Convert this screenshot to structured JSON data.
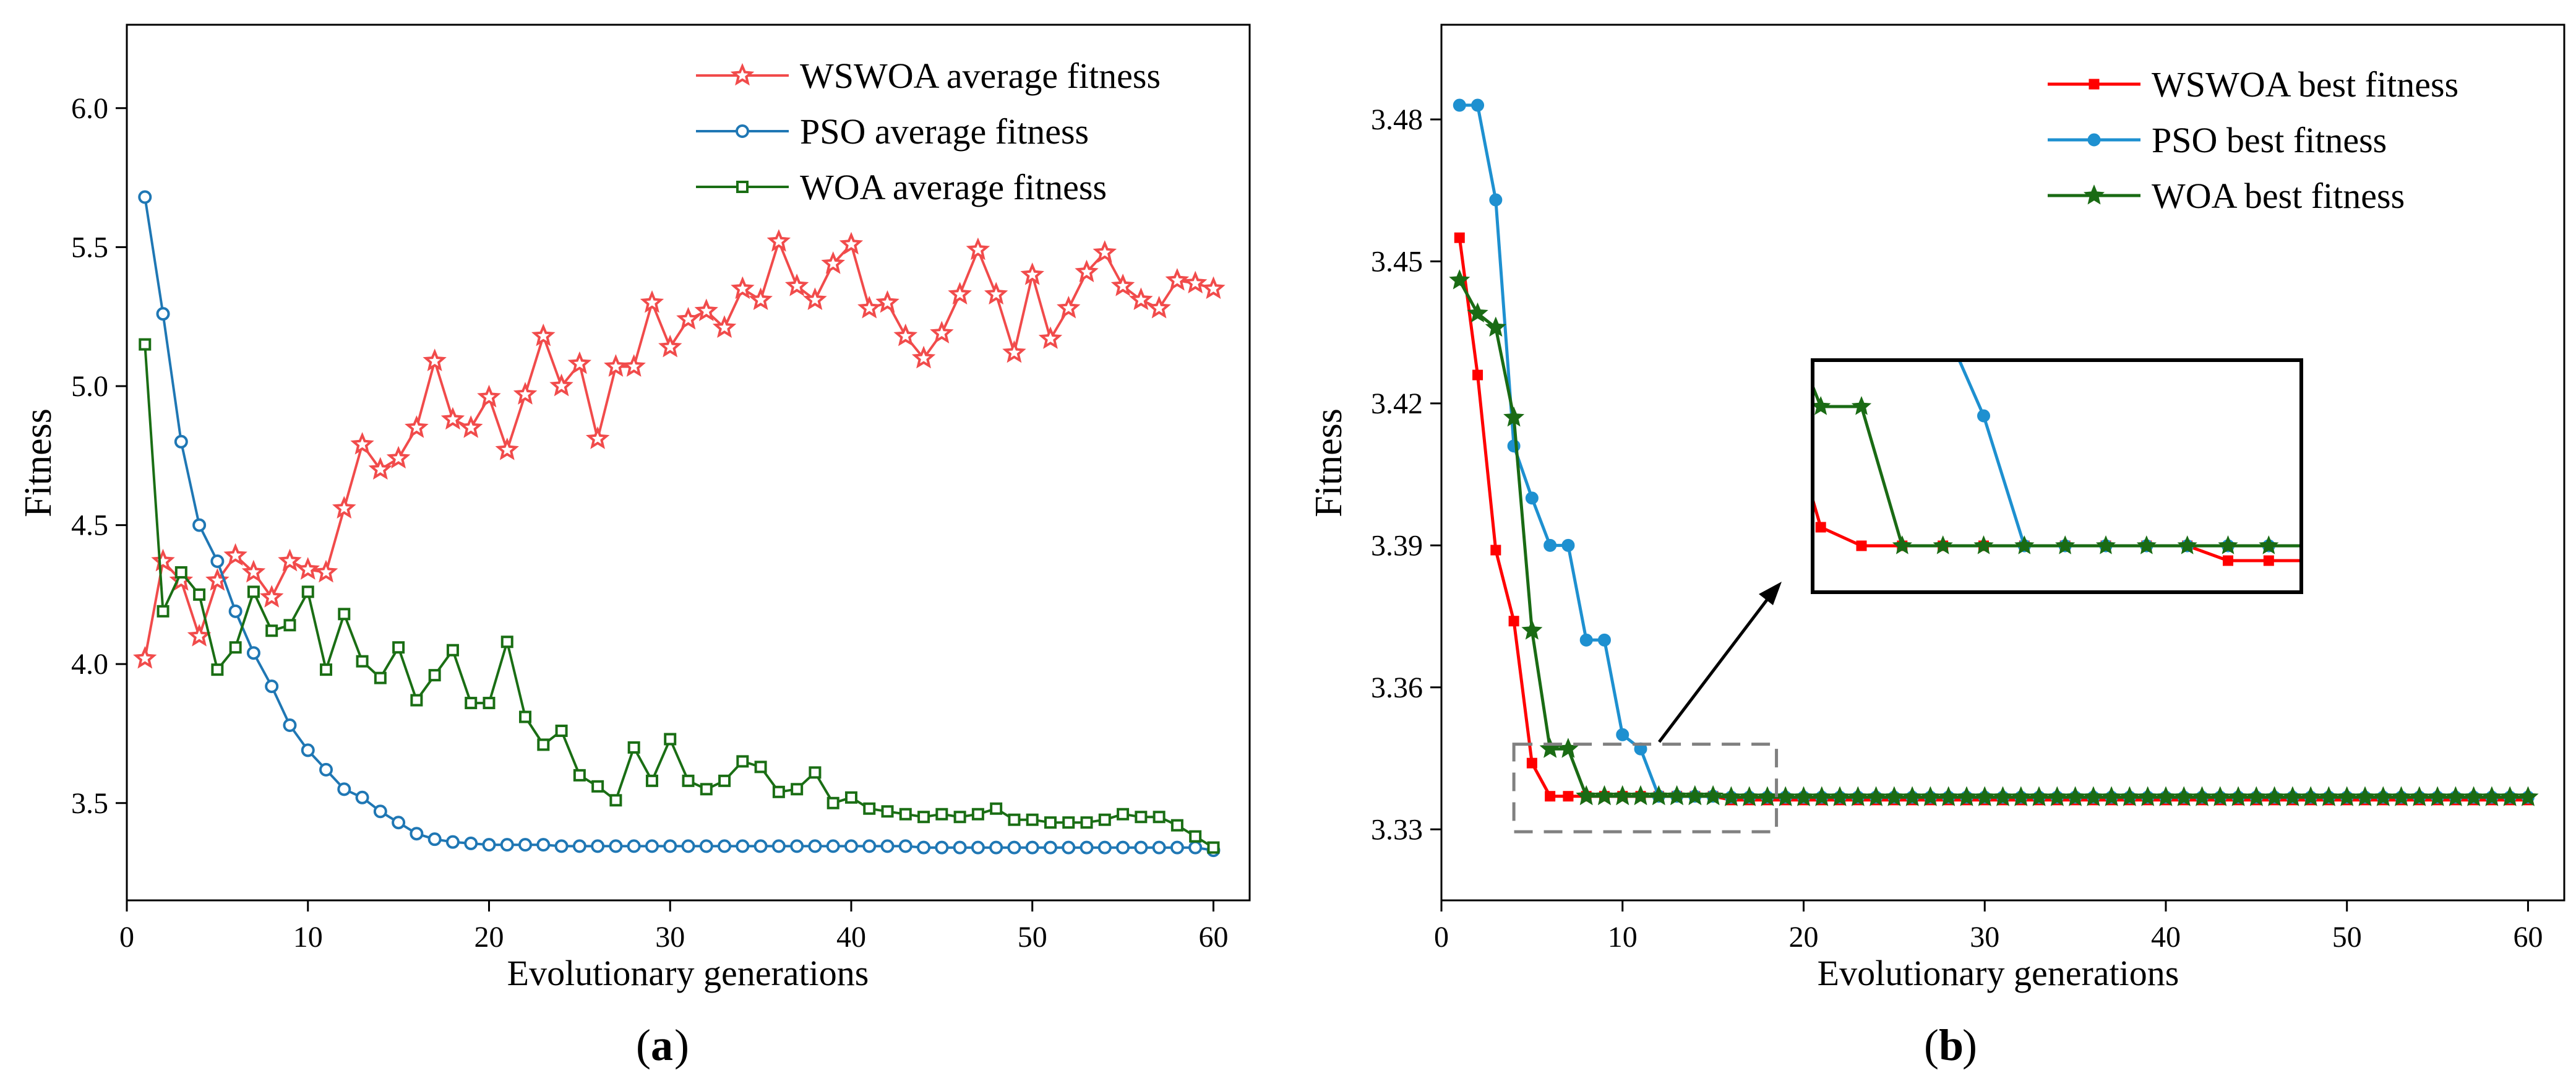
{
  "colors": {
    "wswoa": "#f14b4b",
    "pso": "#1f77b4",
    "woa": "#1a6e14",
    "best_wswoa": "#ff0000",
    "best_pso": "#1e90d0",
    "best_woa": "#1a6b14",
    "zoom_dash": "#808080"
  },
  "chart_data": [
    {
      "type": "line",
      "panel_label": "a",
      "xlabel": "Evolutionary generations",
      "ylabel": "Fitness",
      "xlim": [
        0,
        62
      ],
      "ylim": [
        3.15,
        6.3
      ],
      "xticks": [
        0,
        10,
        20,
        30,
        40,
        50,
        60
      ],
      "yticks": [
        3.5,
        4.0,
        4.5,
        5.0,
        5.5,
        6.0
      ],
      "ytick_labels": [
        "3.5",
        "4.0",
        "4.5",
        "5.0",
        "5.5",
        "6.0"
      ],
      "legend_position": "top-right",
      "x": [
        1,
        2,
        3,
        4,
        5,
        6,
        7,
        8,
        9,
        10,
        11,
        12,
        13,
        14,
        15,
        16,
        17,
        18,
        19,
        20,
        21,
        22,
        23,
        24,
        25,
        26,
        27,
        28,
        29,
        30,
        31,
        32,
        33,
        34,
        35,
        36,
        37,
        38,
        39,
        40,
        41,
        42,
        43,
        44,
        45,
        46,
        47,
        48,
        49,
        50,
        51,
        52,
        53,
        54,
        55,
        56,
        57,
        58,
        59,
        60
      ],
      "series": [
        {
          "name": "WSWOA average fitness",
          "marker": "star",
          "color_key": "wswoa",
          "values": [
            4.02,
            4.37,
            4.3,
            4.1,
            4.3,
            4.39,
            4.33,
            4.24,
            4.37,
            4.34,
            4.33,
            4.56,
            4.79,
            4.7,
            4.74,
            4.85,
            5.09,
            4.88,
            4.85,
            4.96,
            4.77,
            4.97,
            5.18,
            5.0,
            5.08,
            4.81,
            5.07,
            5.07,
            5.3,
            5.14,
            5.24,
            5.27,
            5.21,
            5.35,
            5.31,
            5.52,
            5.36,
            5.31,
            5.44,
            5.51,
            5.28,
            5.3,
            5.18,
            5.1,
            5.19,
            5.33,
            5.49,
            5.33,
            5.12,
            5.4,
            5.17,
            5.28,
            5.41,
            5.48,
            5.36,
            5.31,
            5.28,
            5.38,
            5.37,
            5.35
          ]
        },
        {
          "name": "PSO average fitness",
          "marker": "circle",
          "color_key": "pso",
          "values": [
            5.68,
            5.26,
            4.8,
            4.5,
            4.37,
            4.19,
            4.04,
            3.92,
            3.78,
            3.69,
            3.62,
            3.55,
            3.52,
            3.47,
            3.43,
            3.39,
            3.37,
            3.36,
            3.355,
            3.35,
            3.35,
            3.35,
            3.35,
            3.345,
            3.345,
            3.345,
            3.345,
            3.345,
            3.345,
            3.345,
            3.345,
            3.345,
            3.345,
            3.345,
            3.345,
            3.345,
            3.345,
            3.345,
            3.345,
            3.345,
            3.345,
            3.345,
            3.345,
            3.34,
            3.34,
            3.34,
            3.34,
            3.34,
            3.34,
            3.34,
            3.34,
            3.34,
            3.34,
            3.34,
            3.34,
            3.34,
            3.34,
            3.34,
            3.34,
            3.33
          ]
        },
        {
          "name": "WOA average fitness",
          "marker": "square",
          "color_key": "woa",
          "values": [
            5.15,
            4.19,
            4.33,
            4.25,
            3.98,
            4.06,
            4.26,
            4.12,
            4.14,
            4.26,
            3.98,
            4.18,
            4.01,
            3.95,
            4.06,
            3.87,
            3.96,
            4.05,
            3.86,
            3.86,
            4.08,
            3.81,
            3.71,
            3.76,
            3.6,
            3.56,
            3.51,
            3.7,
            3.58,
            3.73,
            3.58,
            3.55,
            3.58,
            3.65,
            3.63,
            3.54,
            3.55,
            3.61,
            3.5,
            3.52,
            3.48,
            3.47,
            3.46,
            3.45,
            3.46,
            3.45,
            3.46,
            3.48,
            3.44,
            3.44,
            3.43,
            3.43,
            3.43,
            3.44,
            3.46,
            3.45,
            3.45,
            3.42,
            3.38,
            3.34
          ]
        }
      ]
    },
    {
      "type": "line",
      "panel_label": "b",
      "xlabel": "Evolutionary generations",
      "ylabel": "Fitness",
      "xlim": [
        0,
        62
      ],
      "ylim": [
        3.315,
        3.5
      ],
      "xticks": [
        0,
        10,
        20,
        30,
        40,
        50,
        60
      ],
      "yticks": [
        3.33,
        3.36,
        3.39,
        3.42,
        3.45,
        3.48
      ],
      "ytick_labels": [
        "3.33",
        "3.36",
        "3.39",
        "3.42",
        "3.45",
        "3.48"
      ],
      "legend_position": "top-right",
      "x": [
        1,
        2,
        3,
        4,
        5,
        6,
        7,
        8,
        9,
        10,
        11,
        12,
        13,
        14,
        15,
        16,
        17,
        18,
        19,
        20,
        21,
        22,
        23,
        24,
        25,
        26,
        27,
        28,
        29,
        30,
        31,
        32,
        33,
        34,
        35,
        36,
        37,
        38,
        39,
        40,
        41,
        42,
        43,
        44,
        45,
        46,
        47,
        48,
        49,
        50,
        51,
        52,
        53,
        54,
        55,
        56,
        57,
        58,
        59,
        60
      ],
      "zoom_box": {
        "x": [
          4,
          18.5
        ],
        "y": [
          3.3295,
          3.348
        ]
      },
      "inset_points": {
        "x": [
          4,
          5,
          6,
          7,
          8,
          9,
          10,
          11,
          12,
          13,
          14,
          15,
          16,
          17,
          18
        ]
      },
      "series": [
        {
          "name": "WSWOA best fitness",
          "marker": "square",
          "color_key": "best_wswoa",
          "values": [
            3.455,
            3.426,
            3.389,
            3.374,
            3.344,
            3.337,
            3.337,
            3.337,
            3.337,
            3.337,
            3.337,
            3.337,
            3.337,
            3.337,
            3.337,
            3.3362,
            3.3362,
            3.3362,
            3.3362,
            3.3362,
            3.3362,
            3.3362,
            3.3362,
            3.3362,
            3.3362,
            3.3362,
            3.3362,
            3.3362,
            3.3362,
            3.3362,
            3.3362,
            3.3362,
            3.3362,
            3.3362,
            3.3362,
            3.3362,
            3.3362,
            3.3362,
            3.3362,
            3.3362,
            3.3362,
            3.3362,
            3.3362,
            3.3362,
            3.3362,
            3.3362,
            3.3362,
            3.3362,
            3.3362,
            3.3362,
            3.3362,
            3.3362,
            3.3362,
            3.3362,
            3.3362,
            3.3362,
            3.3362,
            3.3362,
            3.3362,
            3.3362
          ],
          "inset_values": [
            3.3455,
            3.338,
            3.337,
            3.337,
            3.337,
            3.337,
            3.337,
            3.337,
            3.337,
            3.337,
            3.337,
            3.3362,
            3.3362,
            3.3362,
            3.3362
          ]
        },
        {
          "name": "PSO best fitness",
          "marker": "circle",
          "color_key": "best_pso",
          "values": [
            3.483,
            3.483,
            3.463,
            3.411,
            3.4,
            3.39,
            3.39,
            3.37,
            3.37,
            3.35,
            3.347,
            3.337,
            3.337,
            3.337,
            3.337,
            3.3368,
            3.3368,
            3.3368,
            3.3368,
            3.3368,
            3.3368,
            3.3368,
            3.3368,
            3.3368,
            3.3368,
            3.3368,
            3.3368,
            3.3368,
            3.3368,
            3.3368,
            3.3368,
            3.3368,
            3.3368,
            3.3368,
            3.3368,
            3.3368,
            3.3368,
            3.3368,
            3.3368,
            3.3368,
            3.3368,
            3.3368,
            3.3368,
            3.3368,
            3.3368,
            3.3368,
            3.3368,
            3.3368,
            3.3368,
            3.3368,
            3.3368,
            3.3368,
            3.3368,
            3.3368,
            3.3368,
            3.3368,
            3.3368,
            3.3368,
            3.3368,
            3.3368
          ],
          "inset_values": [
            3.356,
            3.356,
            3.352,
            3.35,
            3.349,
            3.344,
            3.337,
            3.337,
            3.337,
            3.337,
            3.337,
            3.337,
            3.337,
            3.337,
            3.337
          ]
        },
        {
          "name": "WOA best fitness",
          "marker": "star",
          "color_key": "best_woa",
          "values": [
            3.446,
            3.439,
            3.436,
            3.417,
            3.372,
            3.347,
            3.347,
            3.337,
            3.337,
            3.337,
            3.337,
            3.337,
            3.337,
            3.337,
            3.337,
            3.3368,
            3.3368,
            3.3368,
            3.3368,
            3.3368,
            3.3368,
            3.3368,
            3.3368,
            3.3368,
            3.3368,
            3.3368,
            3.3368,
            3.3368,
            3.3368,
            3.3368,
            3.3368,
            3.3368,
            3.3368,
            3.3368,
            3.3368,
            3.3368,
            3.3368,
            3.3368,
            3.3368,
            3.3368,
            3.3368,
            3.3368,
            3.3368,
            3.3368,
            3.3368,
            3.3368,
            3.3368,
            3.3368,
            3.3368,
            3.3368,
            3.3368,
            3.3368,
            3.3368,
            3.3368,
            3.3368,
            3.3368,
            3.3368,
            3.3368,
            3.3368,
            3.3368
          ],
          "inset_values": [
            3.35,
            3.3445,
            3.3445,
            3.337,
            3.337,
            3.337,
            3.337,
            3.337,
            3.337,
            3.337,
            3.337,
            3.337,
            3.337,
            3.337,
            3.337
          ]
        }
      ]
    }
  ]
}
